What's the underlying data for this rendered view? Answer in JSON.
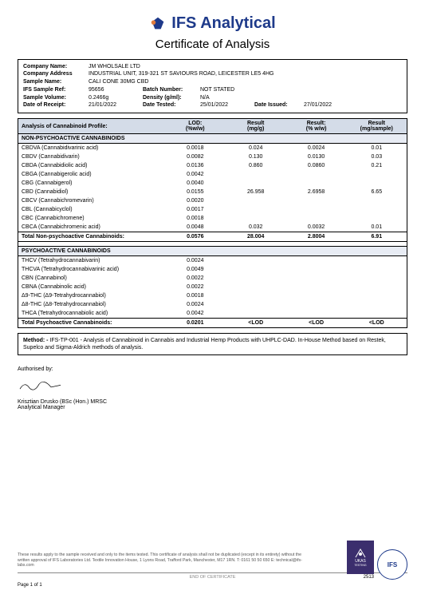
{
  "header": {
    "company": "IFS Analytical",
    "subtitle": "Certificate of Analysis"
  },
  "info": {
    "company_name_label": "Company Name:",
    "company_name": "JM WHOLSALE LTD",
    "company_address_label": "Company Address",
    "company_address": "INDUSTRIAL UNIT, 319-321 ST SAVIOURS ROAD, LEICESTER LE5 4HG",
    "sample_name_label": "Sample Name:",
    "sample_name": "CALI CONE 30MG CBD",
    "sample_ref_label": "IFS Sample Ref:",
    "sample_ref": "95656",
    "batch_number_label": "Batch Number:",
    "batch_number": "NOT STATED",
    "sample_volume_label": "Sample Volume:",
    "sample_volume": "0.2466g",
    "density_label": "Density (g/ml):",
    "density": "N/A",
    "date_receipt_label": "Date of Receipt:",
    "date_receipt": "21/01/2022",
    "date_tested_label": "Date Tested:",
    "date_tested": "25/01/2022",
    "date_issued_label": "Date Issued:",
    "date_issued": "27/01/2022"
  },
  "table": {
    "title": "Analysis of Cannabinoid Profile:",
    "col_lod": "LOD:",
    "col_lod_unit": "(%w/w)",
    "col_r1": "Result",
    "col_r1_unit": "(mg/g)",
    "col_r2": "Result:",
    "col_r2_unit": "(% w/w)",
    "col_r3": "Result",
    "col_r3_unit": "(mg/sample)",
    "section1": "NON-PSYCHOACTIVE CANNABINOIDS",
    "rows1": [
      {
        "name": "CBDVA (Cannabidivarinic acid)",
        "lod": "0.0018",
        "r1": "0.024",
        "r2": "0.0024",
        "r3": "0.01"
      },
      {
        "name": "CBDV (Cannabidivarin)",
        "lod": "0.0082",
        "r1": "0.130",
        "r2": "0.0130",
        "r3": "0.03"
      },
      {
        "name": "CBDA (Cannabidiolic acid)",
        "lod": "0.0136",
        "r1": "0.860",
        "r2": "0.0860",
        "r3": "0.21"
      },
      {
        "name": "CBGA (Cannabigerolic acid)",
        "lod": "0.0042",
        "r1": "<LOD",
        "r2": "<LOD",
        "r3": "<LOD"
      },
      {
        "name": "CBG (Cannabigerol)",
        "lod": "0.0040",
        "r1": "<LOD",
        "r2": "<LOD",
        "r3": "<LOD"
      },
      {
        "name": "CBD (Cannabidiol)",
        "lod": "0.0155",
        "r1": "26.958",
        "r2": "2.6958",
        "r3": "6.65"
      },
      {
        "name": "CBCV (Cannabichromevarin)",
        "lod": "0.0020",
        "r1": "<LOD",
        "r2": "<LOD",
        "r3": "<LOD"
      },
      {
        "name": "CBL (Cannabicyclol)",
        "lod": "0.0017",
        "r1": "<LOD",
        "r2": "<LOD",
        "r3": "<LOD"
      },
      {
        "name": "CBC (Cannabichromene)",
        "lod": "0.0018",
        "r1": "<LOD",
        "r2": "<LOD",
        "r3": "<LOD"
      },
      {
        "name": "CBCA (Cannabichromenic acid)",
        "lod": "0.0048",
        "r1": "0.032",
        "r2": "0.0032",
        "r3": "0.01"
      }
    ],
    "total1_label": "Total Non-psychoactive Cannabinoids:",
    "total1": {
      "lod": "0.0576",
      "r1": "28.004",
      "r2": "2.8004",
      "r3": "6.91"
    },
    "section2": "PSYCHOACTIVE CANNABINOIDS",
    "rows2": [
      {
        "name": "THCV (Tetrahydrocannabivarin)",
        "lod": "0.0024",
        "r1": "<LOD",
        "r2": "<LOD",
        "r3": "<LOD"
      },
      {
        "name": "THCVA (Tetrahydrocannabivarinic acid)",
        "lod": "0.0049",
        "r1": "<LOD",
        "r2": "<LOD",
        "r3": "<LOD"
      },
      {
        "name": "CBN (Cannabinol)",
        "lod": "0.0022",
        "r1": "<LOD",
        "r2": "<LOD",
        "r3": "<LOD"
      },
      {
        "name": "CBNA (Cannabinolic acid)",
        "lod": "0.0022",
        "r1": "<LOD",
        "r2": "<LOD",
        "r3": "<LOD"
      },
      {
        "name": "Δ9-THC (Δ9-Tetrahydrocannabiol)",
        "lod": "0.0018",
        "r1": "<LOD",
        "r2": "<LOD",
        "r3": "<LOD"
      },
      {
        "name": "Δ8-THC (Δ8-Tetrahydrocannabiol)",
        "lod": "0.0024",
        "r1": "<LOD",
        "r2": "<LOD",
        "r3": "<LOD"
      },
      {
        "name": "THCA (Tetrahydrocannabiolic acid)",
        "lod": "0.0042",
        "r1": "<LOD",
        "r2": "<LOD",
        "r3": "<LOD"
      }
    ],
    "total2_label": "Total Psychoactive Cannabinoids:",
    "total2": {
      "lod": "0.0201",
      "r1": "<LOD",
      "r2": "<LOD",
      "r3": "<LOD"
    }
  },
  "method": {
    "label": "Method: -",
    "text": "IFS-TP-001 - Analysis of Cannabinoid in Cannabis and Industrial Hemp Products with UHPLC-DAD. In-House Method based on Restek, Supelco and Sigma-Aldrich methods of analysis."
  },
  "auth": {
    "label": "Authorised by:",
    "name": "Krisztian Drusko (BSc (Hon.) MRSC",
    "title": "Analytical Manager"
  },
  "footer": {
    "disclaimer": "These results apply to the sample received and only to the items tested. This certificate of analysis shall not be duplicated (except in its entirety) without the written approval of IFS Laboratories Ltd. Textile Innovation House, 1 Lyons Road, Trafford Park, Manchester, M17 1RN. T: 0161 50 50 650 E: technical@ifs-labs.com",
    "end": "END OF CERTIFICATE",
    "page": "Page 1 of 1",
    "accred": "2513",
    "ukas": "UKAS",
    "ukas_sub": "TESTING",
    "ifs_badge": "IFS"
  },
  "colors": {
    "brand": "#1e3a8a",
    "header_bg": "#d4dce8",
    "section_bg": "#e8ecf4"
  }
}
